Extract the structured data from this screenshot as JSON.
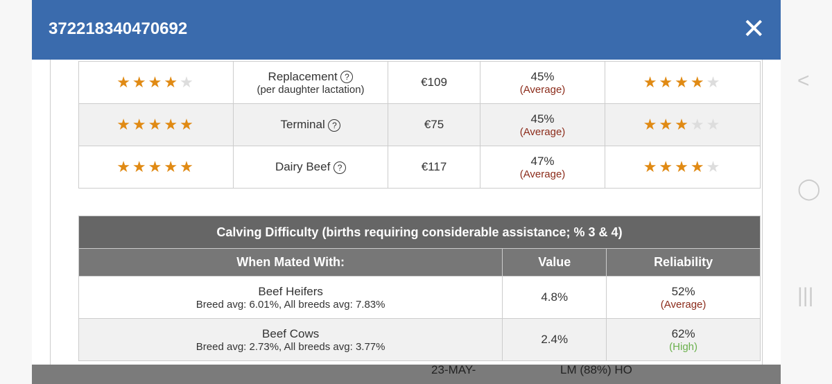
{
  "header": {
    "title": "372218340470692",
    "close_icon": "close-icon"
  },
  "indexes": [
    {
      "stars": 4,
      "name": "Replacement",
      "sub": "(per daughter lactation)",
      "value": "€109",
      "reliability": "45%",
      "rel_label": "(Average)",
      "rel_stars": 4
    },
    {
      "stars": 5,
      "name": "Terminal",
      "sub": "",
      "value": "€75",
      "reliability": "45%",
      "rel_label": "(Average)",
      "rel_stars": 3
    },
    {
      "stars": 5,
      "name": "Dairy Beef",
      "sub": "",
      "value": "€117",
      "reliability": "47%",
      "rel_label": "(Average)",
      "rel_stars": 4
    }
  ],
  "calving": {
    "title": "Calving Difficulty (births requiring considerable assistance; % 3 & 4)",
    "headers": [
      "When Mated With:",
      "Value",
      "Reliability"
    ],
    "rows": [
      {
        "name": "Beef Heifers",
        "sub": "Breed avg: 6.01%, All breeds avg: 7.83%",
        "value": "4.8%",
        "reliability": "52%",
        "rel_label": "(Average)"
      },
      {
        "name": "Beef Cows",
        "sub": "Breed avg: 2.73%, All breeds avg: 3.77%",
        "value": "2.4%",
        "reliability": "62%",
        "rel_label": "(High)"
      }
    ]
  },
  "background_row": {
    "date": "23-MAY-",
    "breed": "LM (88%) HO"
  },
  "colors": {
    "header": "#3a6bad",
    "star": "#e08a14",
    "average": "#8b2b1a",
    "high": "#6ab04c"
  }
}
